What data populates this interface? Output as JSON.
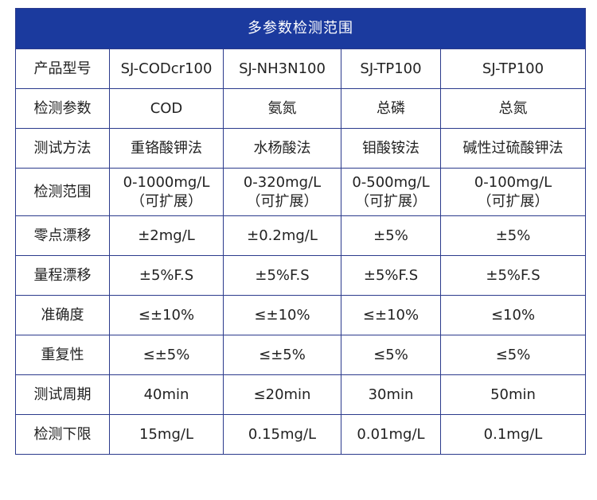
{
  "title": "多参数检测范围",
  "rows": [
    {
      "label": "产品型号",
      "cells": [
        [
          "SJ-CODcr100"
        ],
        [
          "SJ-NH3N100"
        ],
        [
          "SJ-TP100"
        ],
        [
          "SJ-TP100"
        ]
      ]
    },
    {
      "label": "检测参数",
      "cells": [
        [
          "COD"
        ],
        [
          "氨氮"
        ],
        [
          "总磷"
        ],
        [
          "总氮"
        ]
      ]
    },
    {
      "label": "测试方法",
      "cells": [
        [
          "重铬酸钾法"
        ],
        [
          "水杨酸法"
        ],
        [
          "钼酸铵法"
        ],
        [
          "碱性过硫酸钾法"
        ]
      ]
    },
    {
      "label": "检测范围",
      "cells": [
        [
          "0-1000mg/L",
          "（可扩展）"
        ],
        [
          "0-320mg/L",
          "（可扩展）"
        ],
        [
          "0-500mg/L",
          "（可扩展）"
        ],
        [
          "0-100mg/L",
          "（可扩展）"
        ]
      ]
    },
    {
      "label": "零点漂移",
      "cells": [
        [
          "±2mg/L"
        ],
        [
          "±0.2mg/L"
        ],
        [
          "±5%"
        ],
        [
          "±5%"
        ]
      ]
    },
    {
      "label": "量程漂移",
      "cells": [
        [
          "±5%F.S"
        ],
        [
          "±5%F.S"
        ],
        [
          "±5%F.S"
        ],
        [
          "±5%F.S"
        ]
      ]
    },
    {
      "label": "准确度",
      "cells": [
        [
          "≤±10%"
        ],
        [
          "≤±10%"
        ],
        [
          "≤±10%"
        ],
        [
          "≤10%"
        ]
      ]
    },
    {
      "label": "重复性",
      "cells": [
        [
          "≤±5%"
        ],
        [
          "≤±5%"
        ],
        [
          "≤5%"
        ],
        [
          "≤5%"
        ]
      ]
    },
    {
      "label": "测试周期",
      "cells": [
        [
          "40min"
        ],
        [
          "≤20min"
        ],
        [
          "30min"
        ],
        [
          "50min"
        ]
      ]
    },
    {
      "label": "检测下限",
      "cells": [
        [
          "15mg/L"
        ],
        [
          "0.15mg/L"
        ],
        [
          "0.01mg/L"
        ],
        [
          "0.1mg/L"
        ]
      ]
    }
  ]
}
